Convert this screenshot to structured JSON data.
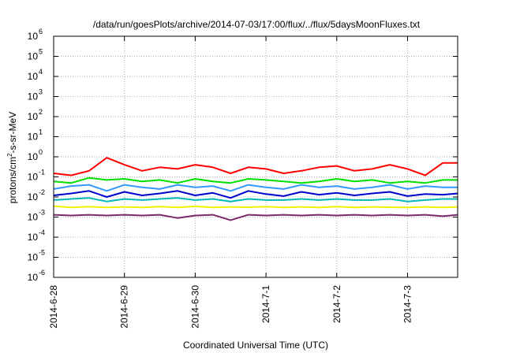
{
  "chart_data": {
    "type": "line",
    "title": "/data/run/goesPlots/archive/2014-07-03/17:00/flux/../flux/5daysMoonFluxes.txt",
    "xlabel": "Coordinated Universal Time (UTC)",
    "ylabel": {
      "base": "protons/cm",
      "sup": "2",
      "rest": "-s-sr-MeV"
    },
    "yscale": "log",
    "ylim": [
      1e-06,
      1000000.0
    ],
    "yticks": [
      {
        "base": "10",
        "exp": "-6",
        "value": 1e-06
      },
      {
        "base": "10",
        "exp": "-5",
        "value": 1e-05
      },
      {
        "base": "10",
        "exp": "-4",
        "value": 0.0001
      },
      {
        "base": "10",
        "exp": "-3",
        "value": 0.001
      },
      {
        "base": "10",
        "exp": "-2",
        "value": 0.01
      },
      {
        "base": "10",
        "exp": "-1",
        "value": 0.1
      },
      {
        "base": "10",
        "exp": "0",
        "value": 1
      },
      {
        "base": "10",
        "exp": "1",
        "value": 10.0
      },
      {
        "base": "10",
        "exp": "2",
        "value": 100.0
      },
      {
        "base": "10",
        "exp": "3",
        "value": 1000.0
      },
      {
        "base": "10",
        "exp": "4",
        "value": 10000.0
      },
      {
        "base": "10",
        "exp": "5",
        "value": 100000.0
      },
      {
        "base": "10",
        "exp": "6",
        "value": 1000000.0
      }
    ],
    "xlim": [
      "2014-06-28",
      "2014-07-03 17:00"
    ],
    "xticks": [
      "2014-6-28",
      "2014-6-29",
      "2014-6-30",
      "2014-7-1",
      "2014-7-2",
      "2014-7-3"
    ],
    "grid": true,
    "x": [
      "2014-06-28 00:00",
      "2014-06-28 06:00",
      "2014-06-28 12:00",
      "2014-06-28 18:00",
      "2014-06-29 00:00",
      "2014-06-29 06:00",
      "2014-06-29 12:00",
      "2014-06-29 18:00",
      "2014-06-30 00:00",
      "2014-06-30 06:00",
      "2014-06-30 12:00",
      "2014-06-30 18:00",
      "2014-07-01 00:00",
      "2014-07-01 06:00",
      "2014-07-01 12:00",
      "2014-07-01 18:00",
      "2014-07-02 00:00",
      "2014-07-02 06:00",
      "2014-07-02 12:00",
      "2014-07-02 18:00",
      "2014-07-03 00:00",
      "2014-07-03 06:00",
      "2014-07-03 12:00",
      "2014-07-03 17:00"
    ],
    "series": [
      {
        "color": "#ff0000",
        "values": [
          0.15,
          0.12,
          0.2,
          0.9,
          0.4,
          0.2,
          0.3,
          0.25,
          0.4,
          0.3,
          0.15,
          0.3,
          0.25,
          0.15,
          0.2,
          0.3,
          0.35,
          0.2,
          0.25,
          0.4,
          0.25,
          0.12,
          0.5,
          0.5
        ]
      },
      {
        "color": "#00e000",
        "values": [
          0.06,
          0.05,
          0.09,
          0.07,
          0.08,
          0.06,
          0.07,
          0.05,
          0.08,
          0.06,
          0.05,
          0.08,
          0.07,
          0.06,
          0.05,
          0.06,
          0.08,
          0.06,
          0.07,
          0.05,
          0.06,
          0.05,
          0.07,
          0.07
        ]
      },
      {
        "color": "#3399ff",
        "values": [
          0.025,
          0.035,
          0.04,
          0.02,
          0.04,
          0.03,
          0.025,
          0.04,
          0.03,
          0.035,
          0.02,
          0.04,
          0.03,
          0.025,
          0.04,
          0.03,
          0.035,
          0.025,
          0.03,
          0.04,
          0.025,
          0.035,
          0.03,
          0.03
        ]
      },
      {
        "color": "#0000cc",
        "values": [
          0.012,
          0.015,
          0.02,
          0.01,
          0.018,
          0.012,
          0.015,
          0.02,
          0.012,
          0.016,
          0.009,
          0.02,
          0.014,
          0.011,
          0.018,
          0.013,
          0.016,
          0.012,
          0.015,
          0.018,
          0.011,
          0.014,
          0.013,
          0.015
        ]
      },
      {
        "color": "#00b8b8",
        "values": [
          0.007,
          0.008,
          0.009,
          0.006,
          0.008,
          0.007,
          0.008,
          0.009,
          0.007,
          0.008,
          0.006,
          0.008,
          0.007,
          0.007,
          0.008,
          0.007,
          0.008,
          0.007,
          0.007,
          0.008,
          0.006,
          0.007,
          0.008,
          0.008
        ]
      },
      {
        "color": "#f0f000",
        "values": [
          0.0035,
          0.003,
          0.0033,
          0.003,
          0.0032,
          0.003,
          0.0033,
          0.003,
          0.0034,
          0.003,
          0.0032,
          0.0031,
          0.0033,
          0.003,
          0.0032,
          0.003,
          0.0033,
          0.003,
          0.0032,
          0.0031,
          0.003,
          0.0032,
          0.003,
          0.0032
        ]
      },
      {
        "color": "#7a2a6a",
        "values": [
          0.0013,
          0.0012,
          0.0013,
          0.0012,
          0.0013,
          0.0012,
          0.0013,
          0.0009,
          0.0012,
          0.0013,
          0.0007,
          0.0013,
          0.0012,
          0.0013,
          0.0012,
          0.0013,
          0.0012,
          0.0013,
          0.0012,
          0.0013,
          0.0012,
          0.0013,
          0.0011,
          0.0013
        ]
      }
    ]
  }
}
